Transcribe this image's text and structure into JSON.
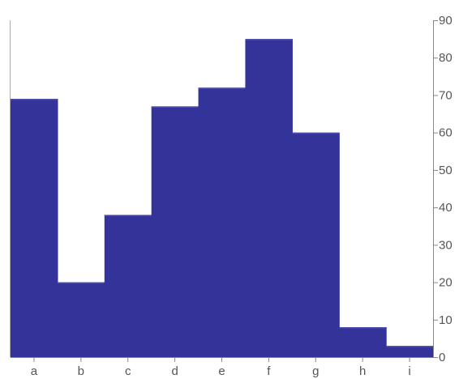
{
  "chart_data": {
    "type": "bar",
    "categories": [
      "a",
      "b",
      "c",
      "d",
      "e",
      "f",
      "g",
      "h",
      "i"
    ],
    "values": [
      69,
      20,
      38,
      67,
      72,
      85,
      60,
      8,
      3
    ],
    "yaxis_side": "right",
    "ylim": [
      0,
      90
    ],
    "yticks": [
      0,
      10,
      20,
      30,
      40,
      50,
      60,
      70,
      80,
      90
    ],
    "ytick_labels": [
      "0",
      "10",
      "20",
      "30",
      "40",
      "50",
      "60",
      "70",
      "80",
      "90"
    ],
    "grid": false,
    "legend": "none",
    "style": "step-area",
    "colors": {
      "fill": "#333399",
      "axis": "#888888",
      "text": "#555555"
    }
  }
}
